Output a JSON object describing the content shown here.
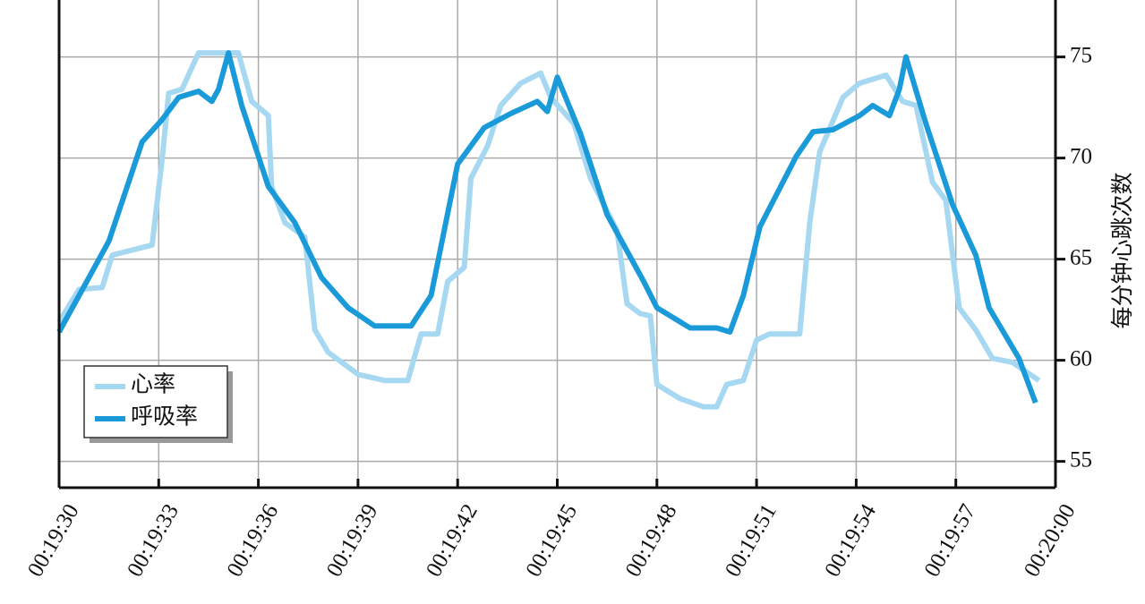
{
  "chart_data": {
    "type": "line",
    "y_label": "每分钟心跳次数",
    "xlim": [
      1170,
      1200
    ],
    "xticks": [
      {
        "value": 1170,
        "label": "00:19:30"
      },
      {
        "value": 1173,
        "label": "00:19:33"
      },
      {
        "value": 1176,
        "label": "00:19:36"
      },
      {
        "value": 1179,
        "label": "00:19:39"
      },
      {
        "value": 1182,
        "label": "00:19:42"
      },
      {
        "value": 1185,
        "label": "00:19:45"
      },
      {
        "value": 1188,
        "label": "00:19:48"
      },
      {
        "value": 1191,
        "label": "00:19:51"
      },
      {
        "value": 1194,
        "label": "00:19:54"
      },
      {
        "value": 1197,
        "label": "00:19:57"
      },
      {
        "value": 1200,
        "label": "00:20:00"
      }
    ],
    "ylim": [
      53.7,
      77.8
    ],
    "yticks": [
      55,
      60,
      65,
      70,
      75
    ],
    "grid": true,
    "legend": "lower left",
    "series": [
      {
        "name": "心率",
        "color": "#a6d8f2",
        "x": [
          1170.0,
          1170.6,
          1171.3,
          1171.6,
          1172.8,
          1173.1,
          1173.3,
          1173.7,
          1174.2,
          1175.4,
          1175.8,
          1176.3,
          1176.4,
          1176.8,
          1177.4,
          1177.7,
          1178.1,
          1179.0,
          1179.8,
          1180.5,
          1180.9,
          1181.4,
          1181.7,
          1182.2,
          1182.4,
          1182.9,
          1183.3,
          1183.9,
          1184.5,
          1184.8,
          1185.5,
          1186.0,
          1186.8,
          1187.1,
          1187.5,
          1187.8,
          1188.0,
          1188.7,
          1189.4,
          1189.8,
          1190.1,
          1190.6,
          1191.0,
          1191.4,
          1192.3,
          1192.6,
          1192.9,
          1193.6,
          1194.1,
          1194.9,
          1195.4,
          1195.8,
          1196.3,
          1196.7,
          1197.1,
          1197.6,
          1198.1,
          1198.7,
          1199.5
        ],
        "values": [
          61.9,
          63.5,
          63.6,
          65.2,
          65.7,
          69.9,
          73.2,
          73.4,
          75.2,
          75.2,
          72.8,
          72.1,
          68.6,
          66.8,
          66.1,
          61.5,
          60.4,
          59.3,
          59.0,
          59.0,
          61.3,
          61.3,
          63.9,
          64.6,
          69.0,
          70.6,
          72.6,
          73.7,
          74.2,
          73.0,
          71.7,
          69.0,
          66.4,
          62.8,
          62.3,
          62.2,
          58.8,
          58.1,
          57.7,
          57.7,
          58.8,
          59.0,
          61.0,
          61.3,
          61.3,
          66.8,
          70.3,
          73.0,
          73.7,
          74.1,
          72.8,
          72.6,
          68.8,
          67.9,
          62.6,
          61.5,
          60.1,
          59.9,
          59.0
        ]
      },
      {
        "name": "呼吸率",
        "color": "#1a9ad9",
        "x": [
          1170.0,
          1171.5,
          1172.5,
          1173.1,
          1173.6,
          1174.2,
          1174.6,
          1174.8,
          1175.1,
          1175.5,
          1176.0,
          1176.3,
          1177.1,
          1177.9,
          1178.7,
          1179.5,
          1180.6,
          1181.2,
          1182.0,
          1182.8,
          1183.6,
          1184.4,
          1184.7,
          1185.0,
          1185.7,
          1186.5,
          1187.6,
          1188.0,
          1189.0,
          1189.8,
          1190.2,
          1190.6,
          1191.1,
          1192.2,
          1192.7,
          1193.3,
          1194.1,
          1194.5,
          1195.0,
          1195.3,
          1195.5,
          1196.1,
          1196.9,
          1197.6,
          1198.0,
          1198.9,
          1199.4
        ],
        "values": [
          61.4,
          65.9,
          70.8,
          71.9,
          73.0,
          73.3,
          72.8,
          73.4,
          75.2,
          72.6,
          70.1,
          68.6,
          66.8,
          64.1,
          62.6,
          61.7,
          61.7,
          63.2,
          69.7,
          71.5,
          72.2,
          72.8,
          72.3,
          74.0,
          71.2,
          67.2,
          63.9,
          62.6,
          61.6,
          61.6,
          61.4,
          63.2,
          66.6,
          70.1,
          71.3,
          71.4,
          72.1,
          72.6,
          72.1,
          73.4,
          75.0,
          71.7,
          67.7,
          65.2,
          62.6,
          60.1,
          57.9
        ]
      }
    ]
  }
}
